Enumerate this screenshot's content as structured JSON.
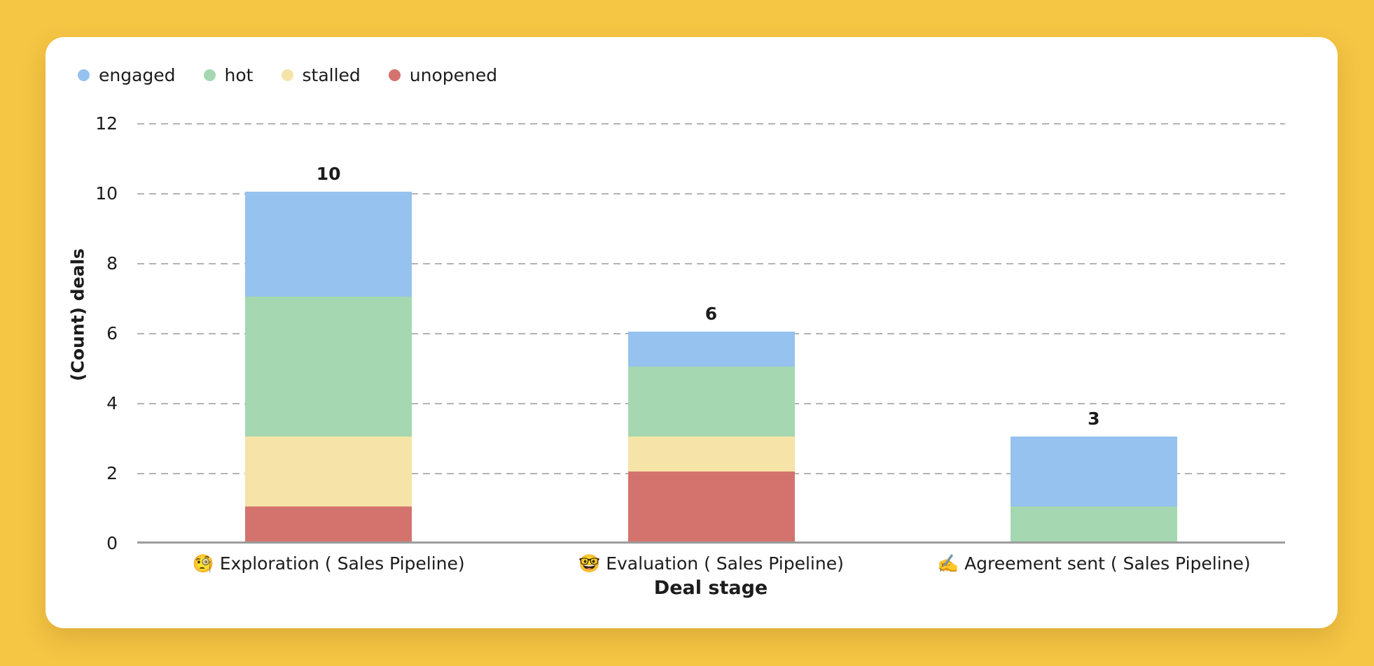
{
  "page": {
    "background_color": "#f5c544"
  },
  "card": {
    "background_color": "#ffffff"
  },
  "legend": {
    "items": [
      {
        "label": "engaged",
        "color": "#95c2ee"
      },
      {
        "label": "hot",
        "color": "#a5d7b0"
      },
      {
        "label": "stalled",
        "color": "#f6e3a8"
      },
      {
        "label": "unopened",
        "color": "#d4736e"
      }
    ]
  },
  "chart_data": {
    "type": "bar",
    "stacked": true,
    "title": "",
    "xlabel": "Deal stage",
    "ylabel": "(Count) deals",
    "ylim": [
      0,
      12
    ],
    "yticks": [
      0,
      2,
      4,
      6,
      8,
      10,
      12
    ],
    "grid": "horizontal-dashed",
    "legend_position": "top-left",
    "categories": [
      {
        "emoji": "🧐",
        "label": "Exploration ( Sales Pipeline)"
      },
      {
        "emoji": "🤓",
        "label": "Evaluation ( Sales Pipeline)"
      },
      {
        "emoji": "✍️",
        "label": "Agreement sent ( Sales Pipeline)"
      }
    ],
    "series": [
      {
        "name": "unopened",
        "color": "#d4736e",
        "values": [
          1,
          2,
          0
        ]
      },
      {
        "name": "stalled",
        "color": "#f6e3a8",
        "values": [
          2,
          1,
          0
        ]
      },
      {
        "name": "hot",
        "color": "#a5d7b0",
        "values": [
          4,
          2,
          1
        ]
      },
      {
        "name": "engaged",
        "color": "#95c2ee",
        "values": [
          3,
          1,
          2
        ]
      }
    ],
    "totals": [
      10,
      6,
      3
    ]
  }
}
